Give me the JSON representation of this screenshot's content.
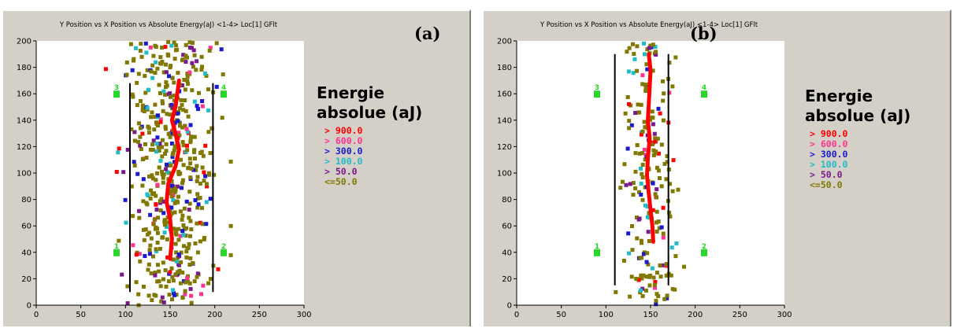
{
  "colors": {
    "gt900": "#ff0000",
    "gt600": "#ff3390",
    "gt300": "#1a1acc",
    "gt100": "#22bcc8",
    "gt50": "#7a1a8a",
    "le50": "#807800",
    "trend": "#ff0000",
    "sensor": "#2bd62b",
    "plot_bg": "#ffffff",
    "panel_bg": "#d4d0c8"
  },
  "panels": [
    {
      "letter": "(a)",
      "title": "Y Position vs X Position vs Absolute Energy(aJ) <1-4> Loc[1] GFlt",
      "legend": {
        "title_line1": "Energie",
        "title_line2": "absolue (aJ)",
        "items": [
          "> 900.0",
          "> 600.0",
          "> 300.0",
          "> 100.0",
          "> 50.0",
          "<=50.0"
        ]
      }
    },
    {
      "letter": "(b)",
      "title": "Y Position vs X Position vs Absolute Energy(aJ) <1-4> Loc[1] GFlt",
      "legend": {
        "title_line1": "Energie",
        "title_line2": "absolue (aJ)",
        "items": [
          "> 900.0",
          "> 600.0",
          "> 300.0",
          "> 100.0",
          "> 50.0",
          "<=50.0"
        ]
      }
    }
  ],
  "chart_data": [
    {
      "type": "scatter",
      "title": "Y Position vs X Position vs Absolute Energy(aJ) <1-4> Loc[1] GFlt",
      "xlim": [
        0,
        300
      ],
      "ylim": [
        0,
        200
      ],
      "x_ticks": [
        0,
        50,
        100,
        150,
        200,
        250,
        300
      ],
      "y_ticks": [
        0,
        20,
        40,
        60,
        80,
        100,
        120,
        140,
        160,
        180,
        200
      ],
      "grid": false,
      "legend_position": "right",
      "spread": {
        "x_center": 152,
        "x_sd": 24,
        "x_min": 78,
        "x_max": 218,
        "y_min": 0,
        "y_max": 200,
        "count": 560
      },
      "class_weights": [
        0.04,
        0.03,
        0.1,
        0.08,
        0.07,
        0.68
      ],
      "guide_lines": [
        {
          "x": 105,
          "y_from": 10,
          "y_to": 168
        },
        {
          "x": 198,
          "y_from": 10,
          "y_to": 168
        }
      ],
      "sensors": [
        {
          "label": "1",
          "x": 90,
          "y": 40
        },
        {
          "label": "2",
          "x": 210,
          "y": 40
        },
        {
          "label": "3",
          "x": 90,
          "y": 160
        },
        {
          "label": "4",
          "x": 210,
          "y": 160
        }
      ],
      "trend": {
        "x": [
          150,
          152,
          150,
          146,
          148,
          156,
          160,
          156,
          152,
          156,
          158,
          160
        ],
        "y": [
          35,
          50,
          65,
          78,
          92,
          105,
          118,
          130,
          140,
          150,
          160,
          170
        ]
      }
    },
    {
      "type": "scatter",
      "title": "Y Position vs X Position vs Absolute Energy(aJ) <1-4> Loc[1] GFlt",
      "xlim": [
        0,
        300
      ],
      "ylim": [
        0,
        200
      ],
      "x_ticks": [
        0,
        50,
        100,
        150,
        200,
        250,
        300
      ],
      "y_ticks": [
        0,
        20,
        40,
        60,
        80,
        100,
        120,
        140,
        160,
        180,
        200
      ],
      "grid": false,
      "legend_position": "right",
      "spread": {
        "x_center": 148,
        "x_sd": 14,
        "x_min": 82,
        "x_max": 210,
        "y_min": 0,
        "y_max": 200,
        "count": 220
      },
      "class_weights": [
        0.04,
        0.03,
        0.1,
        0.1,
        0.08,
        0.65
      ],
      "guide_lines": [
        {
          "x": 110,
          "y_from": 15,
          "y_to": 190
        },
        {
          "x": 170,
          "y_from": 15,
          "y_to": 190
        }
      ],
      "sensors": [
        {
          "label": "1",
          "x": 90,
          "y": 40
        },
        {
          "label": "2",
          "x": 210,
          "y": 40
        },
        {
          "label": "3",
          "x": 90,
          "y": 160
        },
        {
          "label": "4",
          "x": 210,
          "y": 160
        }
      ],
      "trend": {
        "x": [
          153,
          152,
          150,
          148,
          146,
          147,
          149,
          147,
          148,
          149,
          150,
          148
        ],
        "y": [
          48,
          60,
          72,
          85,
          98,
          112,
          126,
          140,
          152,
          165,
          178,
          190
        ]
      }
    }
  ]
}
